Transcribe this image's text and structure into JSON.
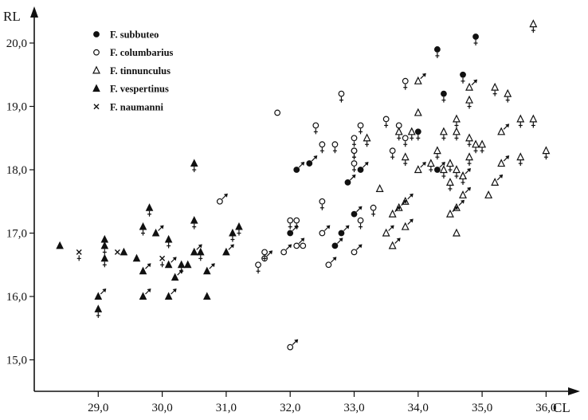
{
  "chart_data": {
    "type": "scatter",
    "xlabel": "CL",
    "ylabel": "RL",
    "xlim": [
      28.0,
      36.4
    ],
    "ylim": [
      14.5,
      20.5
    ],
    "xticks": [
      "29,0",
      "30,0",
      "31,0",
      "32,0",
      "33,0",
      "34,0",
      "35,0",
      "36,0"
    ],
    "yticks": [
      "15,0",
      "16,0",
      "17,0",
      "18,0",
      "19,0",
      "20,0"
    ],
    "legend_position": "top-left",
    "grid": false,
    "series": [
      {
        "name": "F. subbuteo",
        "marker": "filled-circle",
        "points": [
          {
            "x": 34.3,
            "y": 19.9,
            "sex": "F"
          },
          {
            "x": 34.9,
            "y": 20.1,
            "sex": "F"
          },
          {
            "x": 34.7,
            "y": 19.5,
            "sex": "F"
          },
          {
            "x": 34.4,
            "y": 19.2,
            "sex": "F"
          },
          {
            "x": 34.0,
            "y": 18.6,
            "sex": "F"
          },
          {
            "x": 34.3,
            "y": 18.0,
            "sex": "M"
          },
          {
            "x": 32.1,
            "y": 18.0,
            "sex": "M"
          },
          {
            "x": 32.3,
            "y": 18.1,
            "sex": "M"
          },
          {
            "x": 32.9,
            "y": 17.8,
            "sex": "M"
          },
          {
            "x": 33.0,
            "y": 18.3,
            "sex": "F"
          },
          {
            "x": 33.1,
            "y": 18.0,
            "sex": "M"
          },
          {
            "x": 32.0,
            "y": 17.0,
            "sex": "M"
          },
          {
            "x": 32.8,
            "y": 17.0,
            "sex": "M"
          },
          {
            "x": 32.7,
            "y": 16.8,
            "sex": "M"
          },
          {
            "x": 33.0,
            "y": 17.3,
            "sex": "M"
          }
        ]
      },
      {
        "name": "F. columbarius",
        "marker": "open-circle",
        "points": [
          {
            "x": 31.8,
            "y": 18.9,
            "sex": ""
          },
          {
            "x": 32.8,
            "y": 19.2,
            "sex": "F"
          },
          {
            "x": 32.4,
            "y": 18.7,
            "sex": "F"
          },
          {
            "x": 32.5,
            "y": 18.4,
            "sex": "F"
          },
          {
            "x": 32.7,
            "y": 18.4,
            "sex": "F"
          },
          {
            "x": 33.0,
            "y": 18.5,
            "sex": "F"
          },
          {
            "x": 33.1,
            "y": 18.7,
            "sex": "F"
          },
          {
            "x": 33.0,
            "y": 18.3,
            "sex": "F"
          },
          {
            "x": 33.0,
            "y": 18.1,
            "sex": "F"
          },
          {
            "x": 33.5,
            "y": 18.8,
            "sex": "F"
          },
          {
            "x": 33.8,
            "y": 19.4,
            "sex": "F"
          },
          {
            "x": 33.7,
            "y": 18.7,
            "sex": "F"
          },
          {
            "x": 33.8,
            "y": 18.5,
            "sex": "F"
          },
          {
            "x": 33.6,
            "y": 18.3,
            "sex": "F"
          },
          {
            "x": 30.9,
            "y": 17.5,
            "sex": "M"
          },
          {
            "x": 32.1,
            "y": 17.2,
            "sex": "F"
          },
          {
            "x": 32.0,
            "y": 17.2,
            "sex": "F"
          },
          {
            "x": 32.5,
            "y": 17.5,
            "sex": "F"
          },
          {
            "x": 33.1,
            "y": 17.2,
            "sex": "F"
          },
          {
            "x": 33.3,
            "y": 17.4,
            "sex": "F"
          },
          {
            "x": 32.5,
            "y": 17.0,
            "sex": "M"
          },
          {
            "x": 32.2,
            "y": 16.8,
            "sex": ""
          },
          {
            "x": 31.9,
            "y": 16.7,
            "sex": "M"
          },
          {
            "x": 32.1,
            "y": 16.8,
            "sex": "M"
          },
          {
            "x": 31.6,
            "y": 16.6,
            "sex": "M"
          },
          {
            "x": 31.5,
            "y": 16.5,
            "sex": "F"
          },
          {
            "x": 31.6,
            "y": 16.7,
            "sex": "F"
          },
          {
            "x": 32.6,
            "y": 16.5,
            "sex": "M"
          },
          {
            "x": 33.0,
            "y": 16.7,
            "sex": "M"
          },
          {
            "x": 32.0,
            "y": 15.2,
            "sex": "M"
          }
        ]
      },
      {
        "name": "F. tinnunculus",
        "marker": "open-triangle",
        "points": [
          {
            "x": 35.8,
            "y": 20.3,
            "sex": "F"
          },
          {
            "x": 34.0,
            "y": 19.4,
            "sex": "M"
          },
          {
            "x": 34.8,
            "y": 19.3,
            "sex": "M"
          },
          {
            "x": 35.2,
            "y": 19.3,
            "sex": "F"
          },
          {
            "x": 35.4,
            "y": 19.2,
            "sex": "F"
          },
          {
            "x": 34.8,
            "y": 19.1,
            "sex": "F"
          },
          {
            "x": 34.0,
            "y": 18.9,
            "sex": ""
          },
          {
            "x": 34.6,
            "y": 18.8,
            "sex": "F"
          },
          {
            "x": 35.6,
            "y": 18.8,
            "sex": "F"
          },
          {
            "x": 35.8,
            "y": 18.8,
            "sex": "F"
          },
          {
            "x": 33.2,
            "y": 18.5,
            "sex": "F"
          },
          {
            "x": 33.7,
            "y": 18.6,
            "sex": "F"
          },
          {
            "x": 33.9,
            "y": 18.6,
            "sex": "F"
          },
          {
            "x": 34.4,
            "y": 18.6,
            "sex": "F"
          },
          {
            "x": 34.6,
            "y": 18.6,
            "sex": "F"
          },
          {
            "x": 35.3,
            "y": 18.6,
            "sex": "M"
          },
          {
            "x": 34.3,
            "y": 18.3,
            "sex": "F"
          },
          {
            "x": 34.8,
            "y": 18.5,
            "sex": "F"
          },
          {
            "x": 34.9,
            "y": 18.4,
            "sex": "F"
          },
          {
            "x": 35.0,
            "y": 18.4,
            "sex": "F"
          },
          {
            "x": 33.8,
            "y": 18.2,
            "sex": "F"
          },
          {
            "x": 34.0,
            "y": 18.0,
            "sex": "M"
          },
          {
            "x": 34.2,
            "y": 18.1,
            "sex": "F"
          },
          {
            "x": 34.4,
            "y": 18.0,
            "sex": "F"
          },
          {
            "x": 34.5,
            "y": 18.1,
            "sex": "F"
          },
          {
            "x": 34.6,
            "y": 18.0,
            "sex": "F"
          },
          {
            "x": 34.7,
            "y": 17.9,
            "sex": "F"
          },
          {
            "x": 34.8,
            "y": 18.2,
            "sex": "F"
          },
          {
            "x": 35.3,
            "y": 18.1,
            "sex": "M"
          },
          {
            "x": 35.6,
            "y": 18.2,
            "sex": "F"
          },
          {
            "x": 36.0,
            "y": 18.3,
            "sex": "F"
          },
          {
            "x": 34.5,
            "y": 17.8,
            "sex": "F"
          },
          {
            "x": 34.7,
            "y": 17.9,
            "sex": "M"
          },
          {
            "x": 35.2,
            "y": 17.8,
            "sex": "M"
          },
          {
            "x": 33.4,
            "y": 17.7,
            "sex": ""
          },
          {
            "x": 35.1,
            "y": 17.6,
            "sex": ""
          },
          {
            "x": 34.7,
            "y": 17.6,
            "sex": "M"
          },
          {
            "x": 33.8,
            "y": 17.5,
            "sex": "M"
          },
          {
            "x": 33.7,
            "y": 17.4,
            "sex": "M"
          },
          {
            "x": 34.6,
            "y": 17.4,
            "sex": "M"
          },
          {
            "x": 33.6,
            "y": 17.3,
            "sex": "M"
          },
          {
            "x": 34.5,
            "y": 17.3,
            "sex": "M"
          },
          {
            "x": 33.8,
            "y": 17.1,
            "sex": "M"
          },
          {
            "x": 33.5,
            "y": 17.0,
            "sex": "M"
          },
          {
            "x": 34.6,
            "y": 17.0,
            "sex": ""
          },
          {
            "x": 33.6,
            "y": 16.8,
            "sex": "M"
          }
        ]
      },
      {
        "name": "F. vespertinus",
        "marker": "filled-triangle",
        "points": [
          {
            "x": 30.5,
            "y": 18.1,
            "sex": "F"
          },
          {
            "x": 29.8,
            "y": 17.4,
            "sex": "F"
          },
          {
            "x": 30.5,
            "y": 17.2,
            "sex": "F"
          },
          {
            "x": 29.7,
            "y": 17.1,
            "sex": "F"
          },
          {
            "x": 30.1,
            "y": 16.9,
            "sex": "F"
          },
          {
            "x": 29.1,
            "y": 16.9,
            "sex": "F"
          },
          {
            "x": 29.1,
            "y": 16.8,
            "sex": "F"
          },
          {
            "x": 28.4,
            "y": 16.8,
            "sex": ""
          },
          {
            "x": 29.4,
            "y": 16.7,
            "sex": ""
          },
          {
            "x": 29.9,
            "y": 17.0,
            "sex": "M"
          },
          {
            "x": 30.5,
            "y": 16.7,
            "sex": "M"
          },
          {
            "x": 30.6,
            "y": 16.7,
            "sex": "F"
          },
          {
            "x": 31.0,
            "y": 16.7,
            "sex": "M"
          },
          {
            "x": 31.1,
            "y": 17.0,
            "sex": "F"
          },
          {
            "x": 31.2,
            "y": 17.1,
            "sex": "F"
          },
          {
            "x": 29.1,
            "y": 16.6,
            "sex": "F"
          },
          {
            "x": 29.6,
            "y": 16.6,
            "sex": ""
          },
          {
            "x": 30.1,
            "y": 16.5,
            "sex": "M"
          },
          {
            "x": 30.3,
            "y": 16.5,
            "sex": "F"
          },
          {
            "x": 30.4,
            "y": 16.5,
            "sex": ""
          },
          {
            "x": 29.7,
            "y": 16.4,
            "sex": "M"
          },
          {
            "x": 30.7,
            "y": 16.4,
            "sex": "M"
          },
          {
            "x": 30.2,
            "y": 16.3,
            "sex": "M"
          },
          {
            "x": 29.0,
            "y": 16.0,
            "sex": "M"
          },
          {
            "x": 29.7,
            "y": 16.0,
            "sex": "M"
          },
          {
            "x": 30.1,
            "y": 16.0,
            "sex": "M"
          },
          {
            "x": 30.7,
            "y": 16.0,
            "sex": ""
          },
          {
            "x": 29.0,
            "y": 15.8,
            "sex": "F"
          }
        ]
      },
      {
        "name": "F. naumanni",
        "marker": "cross",
        "points": [
          {
            "x": 28.7,
            "y": 16.7,
            "sex": "F"
          },
          {
            "x": 29.3,
            "y": 16.7,
            "sex": ""
          },
          {
            "x": 30.0,
            "y": 16.6,
            "sex": "F"
          }
        ]
      }
    ]
  }
}
